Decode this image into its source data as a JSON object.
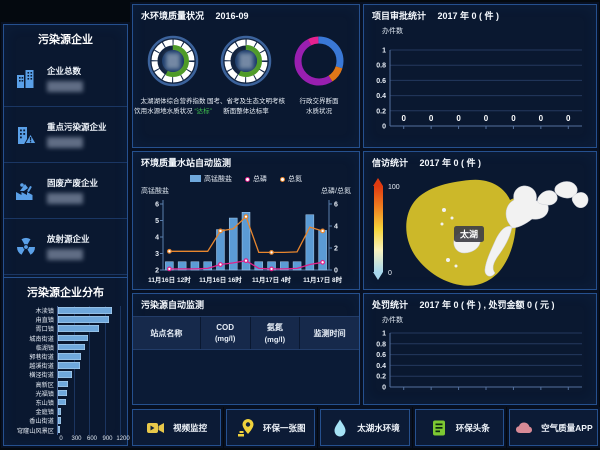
{
  "colors": {
    "accent_blue": "#6fa8dc",
    "orange": "#e8862e",
    "pink": "#e0218a",
    "green": "#3fbf4e",
    "map_yellow": "#ccb829"
  },
  "sidebar": {
    "title": "污染源企业",
    "items": [
      {
        "label": "企业总数",
        "icon": "building-icon"
      },
      {
        "label": "重点污染源企业",
        "icon": "building-alert-icon"
      },
      {
        "label": "固废产废企业",
        "icon": "waste-factory-icon"
      },
      {
        "label": "放射源企业",
        "icon": "radiation-icon"
      }
    ],
    "distribution_title": "污染源企业分布"
  },
  "water_quality": {
    "title": "水环境质量状况",
    "period": "2016-09",
    "gauges": [
      {
        "line1": "太湖湖体综合营养指数",
        "line2": "饮用水源地水质状况",
        "badge": "“达标”",
        "arc_percent": 58
      },
      {
        "line1": "国考、省考及生态文明考核",
        "line2": "断面整体达标率",
        "badge": "",
        "arc_percent": 58
      },
      {
        "line1": "行政交界断面",
        "line2": "水质状况",
        "badge": ""
      }
    ]
  },
  "station_panel": {
    "title": "环境质量水站自动监测"
  },
  "pollution_table": {
    "title": "污染源自动监测",
    "columns": [
      {
        "l1": "站点名称",
        "l2": ""
      },
      {
        "l1": "COD",
        "l2": "(mg/l)"
      },
      {
        "l1": "氨氮",
        "l2": "(mg/l)"
      },
      {
        "l1": "监测时间",
        "l2": ""
      }
    ],
    "rows": []
  },
  "project_approval": {
    "title": "项目审批统计",
    "stat": "2017 年 0 ( 件 )",
    "ylabel": "办件数"
  },
  "petition": {
    "title": "信访统计",
    "stat": "2017 年 0 ( 件 )",
    "legend_max": "100",
    "legend_min": "0",
    "region_label": "太湖"
  },
  "penalty": {
    "title": "处罚统计",
    "stat": "2017 年 0 ( 件 ) , 处罚金额 0 ( 元 )",
    "ylabel": "办件数"
  },
  "bottom_bar": {
    "buttons": [
      {
        "label": "视频监控",
        "icon": "video-camera-icon"
      },
      {
        "label": "环保一张图",
        "icon": "map-pin-icon"
      },
      {
        "label": "太湖水环境",
        "icon": "water-drop-icon"
      },
      {
        "label": "环保头条",
        "icon": "news-icon"
      },
      {
        "label": "空气质量APP",
        "icon": "cloud-icon"
      }
    ]
  },
  "chart_data": [
    {
      "id": "enterprise_distribution",
      "type": "bar",
      "orientation": "horizontal",
      "title": "污染源企业分布",
      "categories": [
        "木渎镇",
        "甪直镇",
        "胥口镇",
        "城南街道",
        "临湖镇",
        "郭巷街道",
        "越溪街道",
        "横泾街道",
        "高新区",
        "光福镇",
        "东山镇",
        "金庭镇",
        "香山街道",
        "穹窿山风景区"
      ],
      "values": [
        1050,
        980,
        790,
        580,
        525,
        440,
        420,
        270,
        185,
        170,
        160,
        55,
        50,
        35
      ],
      "xlim": [
        0,
        1200
      ],
      "xticks": [
        0,
        300,
        600,
        900,
        1200
      ],
      "bar_color": "#6fa8dc"
    },
    {
      "id": "station_auto_monitor",
      "type": "combo",
      "title": "环境质量水站自动监测",
      "xtick_labels": [
        "11月16日 12时",
        "11月16日 16时",
        "11月17日 4时",
        "11月17日 8时"
      ],
      "xtick_positions": [
        0,
        4,
        8,
        12
      ],
      "bars": {
        "name": "高锰酸盐",
        "axis": "left",
        "color": "#5b9bd5",
        "values": [
          2.5,
          2.5,
          2.5,
          2.5,
          4.45,
          5.15,
          5.5,
          2.5,
          2.5,
          2.5,
          2.5,
          5.35,
          4.4
        ]
      },
      "series": [
        {
          "name": "总磷",
          "axis": "right",
          "color": "#e0218a",
          "values": [
            0.1,
            0.1,
            0.1,
            0.15,
            0.5,
            0.65,
            0.85,
            0.15,
            0.1,
            0.1,
            0.15,
            0.5,
            0.7
          ]
        },
        {
          "name": "总氮",
          "axis": "right",
          "color": "#e8862e",
          "values": [
            1.7,
            1.7,
            1.7,
            1.7,
            3.55,
            3.75,
            4.85,
            1.6,
            1.6,
            1.6,
            1.65,
            3.9,
            3.55
          ]
        }
      ],
      "left_axis": {
        "label": "高锰酸盐",
        "min": 2,
        "max": 6,
        "ticks": [
          2,
          3,
          4,
          5,
          6
        ]
      },
      "right_axis": {
        "label": "总磷/总氮",
        "min": 0,
        "max": 6,
        "ticks": [
          0,
          2,
          4,
          6
        ]
      }
    },
    {
      "id": "boundary_section_donut",
      "type": "pie",
      "donut": true,
      "slices": [
        {
          "color": "#3a78d6",
          "value": 30
        },
        {
          "color": "#e07818",
          "value": 11
        },
        {
          "color": "#991fb0",
          "value": 52
        },
        {
          "color": "#e6218f",
          "value": 7
        }
      ]
    },
    {
      "id": "project_approval_chart",
      "type": "bar",
      "values": [
        0,
        0,
        0,
        0,
        0,
        0,
        0
      ],
      "value_labels": [
        "0",
        "0",
        "0",
        "0",
        "0",
        "0",
        "0"
      ],
      "ylabel": "办件数",
      "ylim": [
        0,
        1
      ],
      "yticks": [
        1,
        0.8,
        0.6,
        0.4,
        0.2,
        0
      ]
    },
    {
      "id": "penalty_chart",
      "type": "bar",
      "values": [],
      "ylabel": "办件数",
      "ylim": [
        0,
        1
      ],
      "yticks": [
        1,
        0.8,
        0.6,
        0.4,
        0.2,
        0
      ]
    },
    {
      "id": "petition_map",
      "type": "heatmap",
      "legend_max": 100,
      "legend_min": 0,
      "region_label": "太湖",
      "region_fill": "#ccb829"
    }
  ]
}
